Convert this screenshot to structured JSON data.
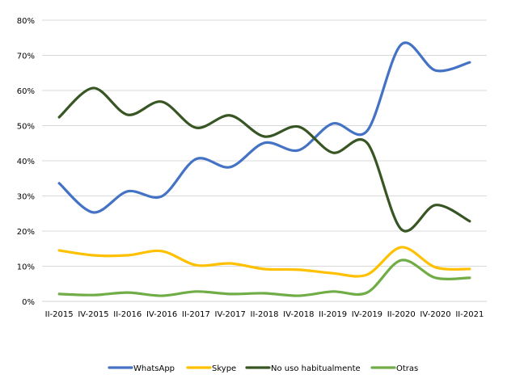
{
  "chart_data": {
    "type": "line",
    "title": "",
    "xlabel": "",
    "ylabel": "",
    "ylim": [
      0,
      80
    ],
    "yticks": [
      "0%",
      "10%",
      "20%",
      "30%",
      "40%",
      "50%",
      "60%",
      "70%",
      "80%"
    ],
    "grid": true,
    "legend_position": "bottom",
    "categories": [
      "II-2015",
      "IV-2015",
      "II-2016",
      "IV-2016",
      "II-2017",
      "IV-2017",
      "II-2018",
      "IV-2018",
      "II-2019",
      "IV-2019",
      "II-2020",
      "IV-2020",
      "II-2021"
    ],
    "series": [
      {
        "name": "WhatsApp",
        "color": "#4472C4",
        "values": [
          33.6,
          25.3,
          31.3,
          29.9,
          40.5,
          38.2,
          45.1,
          43.0,
          50.6,
          48.5,
          73.1,
          65.7,
          68.0
        ]
      },
      {
        "name": "Skype",
        "color": "#FFC000",
        "values": [
          14.5,
          13.1,
          13.1,
          14.3,
          10.3,
          10.8,
          9.2,
          9.0,
          8.0,
          7.6,
          15.4,
          9.7,
          9.2
        ]
      },
      {
        "name": "No uso habitualmente",
        "color": "#375623",
        "values": [
          52.4,
          60.7,
          53.1,
          56.8,
          49.4,
          52.9,
          46.9,
          49.7,
          42.3,
          45.1,
          20.5,
          27.4,
          22.8
        ]
      },
      {
        "name": "Otras",
        "color": "#70AD47",
        "values": [
          2.1,
          1.8,
          2.5,
          1.6,
          2.8,
          2.1,
          2.3,
          1.6,
          2.8,
          2.5,
          11.7,
          6.7,
          6.7
        ]
      }
    ]
  }
}
